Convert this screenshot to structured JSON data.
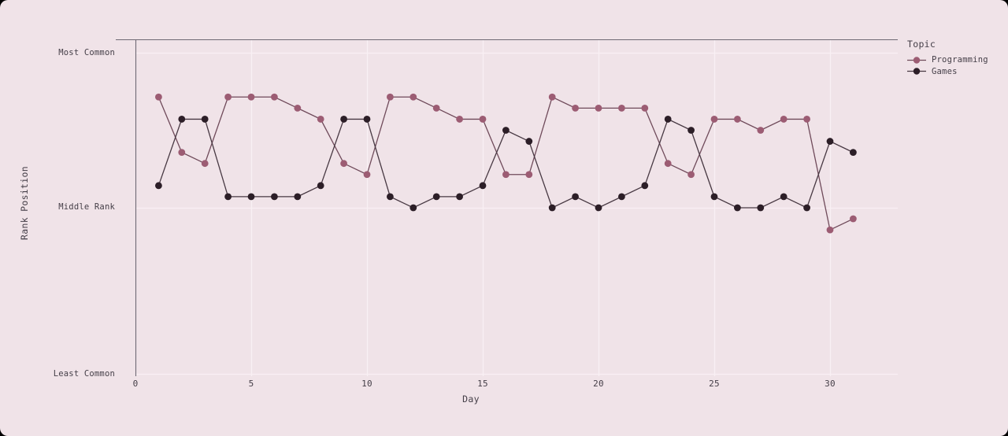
{
  "chart_data": {
    "type": "line",
    "title": "",
    "xlabel": "Day",
    "ylabel": "Rank Position",
    "legend_title": "Topic",
    "legend_position": "top-right",
    "grid": true,
    "x_ticks": [
      0,
      5,
      10,
      15,
      20,
      25,
      30
    ],
    "y_ticks": [
      {
        "label": "Most Common",
        "rank": 1
      },
      {
        "label": "Middle Rank",
        "rank": 15
      },
      {
        "label": "Least Common",
        "rank": 30
      }
    ],
    "xlim": [
      0,
      33
    ],
    "ylim_ranks": [
      1,
      30
    ],
    "y_axis_note": "rank 1 = Most Common at top, rank 30 = Least Common at bottom",
    "x": [
      1,
      2,
      3,
      4,
      5,
      6,
      7,
      8,
      9,
      10,
      11,
      12,
      13,
      14,
      15,
      16,
      17,
      18,
      19,
      20,
      21,
      22,
      23,
      24,
      25,
      26,
      27,
      28,
      29,
      30,
      31
    ],
    "series": [
      {
        "name": "Programming",
        "dot_color": "#9c5c73",
        "line_color": "#6f4a5a",
        "values": [
          5,
          10,
          11,
          5,
          5,
          5,
          6,
          7,
          11,
          12,
          5,
          5,
          6,
          7,
          7,
          12,
          12,
          5,
          6,
          6,
          6,
          6,
          11,
          12,
          7,
          7,
          8,
          7,
          7,
          17,
          16
        ]
      },
      {
        "name": "Games",
        "dot_color": "#2c1e27",
        "line_color": "#473842",
        "values": [
          13,
          7,
          7,
          14,
          14,
          14,
          14,
          13,
          7,
          7,
          14,
          15,
          14,
          14,
          13,
          8,
          9,
          15,
          14,
          15,
          14,
          13,
          7,
          8,
          14,
          15,
          15,
          14,
          15,
          9,
          10
        ]
      }
    ]
  },
  "palette": {
    "background": "#f0e3e8",
    "gridline": "#f9f0f4",
    "spine": "#6e London6873",
    "text": "#443e47"
  }
}
